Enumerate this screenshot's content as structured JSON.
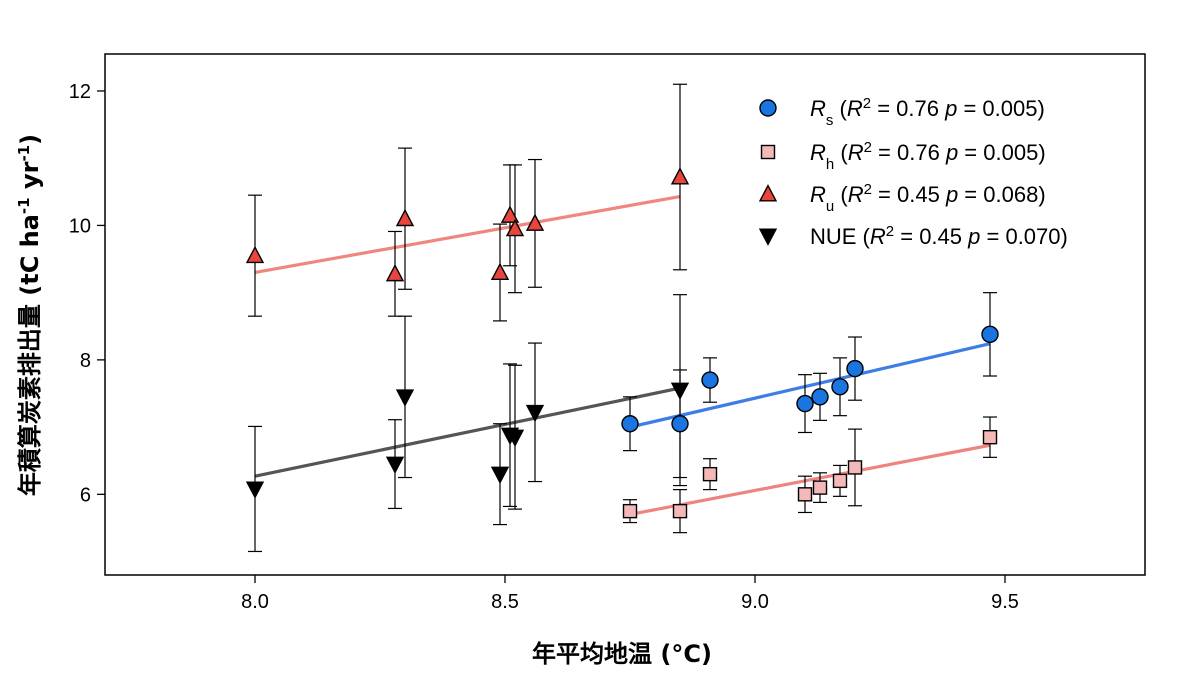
{
  "chart_data": {
    "type": "scatter",
    "xlabel": "年平均地温 (°C)",
    "ylabel": "年積算炭素排出量 (tC ha-1 yr-1)",
    "xlim": [
      7.7,
      9.78
    ],
    "ylim": [
      4.8,
      12.55
    ],
    "xticks": [
      8.0,
      8.5,
      9.0,
      9.5
    ],
    "xtick_labels": [
      "8.0",
      "8.5",
      "9.0",
      "9.5"
    ],
    "yticks": [
      6,
      8,
      10,
      12
    ],
    "ytick_labels": [
      "6",
      "8",
      "10",
      "12"
    ],
    "grid": false,
    "legend_position": "top-right",
    "series": [
      {
        "name": "Rs",
        "legend_label": {
          "symbol": "R",
          "sub": "s",
          "stat": "(R2 = 0.76 p = 0.005)",
          "r2": "0.76",
          "p": "0.005"
        },
        "marker": "circle",
        "color": "#1a75e0",
        "line_color": "#3f7de6",
        "x": [
          8.75,
          8.85,
          8.91,
          9.1,
          9.13,
          9.17,
          9.2,
          9.47
        ],
        "y": [
          7.05,
          7.05,
          7.7,
          7.35,
          7.45,
          7.6,
          7.87,
          8.38
        ],
        "err": [
          0.4,
          0.8,
          0.33,
          0.43,
          0.35,
          0.43,
          0.47,
          0.62
        ],
        "fit": {
          "x": [
            8.75,
            9.47
          ],
          "y": [
            7.0,
            8.24
          ]
        }
      },
      {
        "name": "Rh",
        "legend_label": {
          "symbol": "R",
          "sub": "h",
          "stat": "(R2 = 0.76 p = 0.005)",
          "r2": "0.76",
          "p": "0.005"
        },
        "marker": "square",
        "color": "#f4b8b8",
        "line_color": "#ee8480",
        "x": [
          8.75,
          8.85,
          8.91,
          9.1,
          9.13,
          9.17,
          9.2,
          9.47
        ],
        "y": [
          5.75,
          5.75,
          6.3,
          6.0,
          6.1,
          6.2,
          6.4,
          6.85
        ],
        "err": [
          0.17,
          0.32,
          0.23,
          0.27,
          0.22,
          0.23,
          0.57,
          0.3
        ],
        "fit": {
          "x": [
            8.75,
            9.47
          ],
          "y": [
            5.7,
            6.73
          ]
        }
      },
      {
        "name": "Ru",
        "legend_label": {
          "symbol": "R",
          "sub": "u",
          "stat": "(R2 = 0.45 p = 0.068)",
          "r2": "0.45",
          "p": "0.068"
        },
        "marker": "triangle-up",
        "color": "#e8453c",
        "line_color": "#f08680",
        "x": [
          8.0,
          8.28,
          8.3,
          8.49,
          8.51,
          8.52,
          8.56,
          8.85
        ],
        "y": [
          9.55,
          9.28,
          10.1,
          9.3,
          10.15,
          9.95,
          10.03,
          10.72
        ],
        "err": [
          0.9,
          0.63,
          1.05,
          0.72,
          0.75,
          0.95,
          0.95,
          1.38
        ],
        "fit": {
          "x": [
            8.0,
            8.85
          ],
          "y": [
            9.3,
            10.43
          ]
        }
      },
      {
        "name": "NUE",
        "legend_label": {
          "symbol": "NUE",
          "sub": "",
          "stat": "(R2 = 0.45 p = 0.070)",
          "r2": "0.45",
          "p": "0.070"
        },
        "marker": "triangle-down",
        "color": "#000000",
        "line_color": "#555555",
        "x": [
          8.0,
          8.28,
          8.3,
          8.49,
          8.51,
          8.52,
          8.56,
          8.85
        ],
        "y": [
          6.08,
          6.45,
          7.45,
          6.3,
          6.88,
          6.85,
          7.22,
          7.55
        ],
        "err": [
          0.93,
          0.66,
          1.2,
          0.75,
          1.06,
          1.07,
          1.03,
          1.42
        ],
        "fit": {
          "x": [
            8.0,
            8.85
          ],
          "y": [
            6.27,
            7.58
          ]
        }
      }
    ]
  }
}
